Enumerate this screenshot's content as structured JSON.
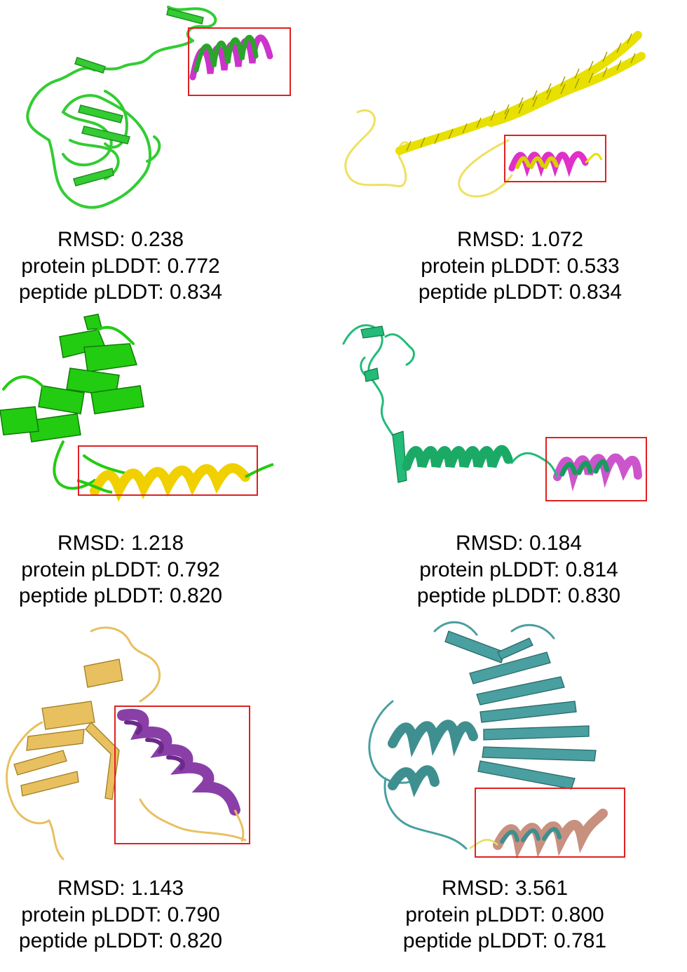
{
  "figure": {
    "panels": [
      {
        "rmsd_label": "RMSD: 0.238",
        "protein_label": "protein pLDDT: 0.772",
        "peptide_label": "peptide pLDDT: 0.834",
        "protein_color": "#33cc33",
        "peptide_color": "#cc33cc",
        "icon": "protein-structure-icon"
      },
      {
        "rmsd_label": "RMSD: 1.072",
        "protein_label": "protein pLDDT: 0.533",
        "peptide_label": "peptide pLDDT: 0.834",
        "protein_color": "#e8e000",
        "peptide_color": "#e030c8",
        "icon": "protein-structure-icon"
      },
      {
        "rmsd_label": "RMSD: 1.218",
        "protein_label": "protein pLDDT: 0.792",
        "peptide_label": "peptide pLDDT: 0.820",
        "protein_color": "#22cc11",
        "peptide_color": "#f0d000",
        "icon": "protein-structure-icon"
      },
      {
        "rmsd_label": "RMSD: 0.184",
        "protein_label": "protein pLDDT: 0.814",
        "peptide_label": "peptide pLDDT: 0.830",
        "protein_color": "#22bb77",
        "peptide_color": "#cc55cc",
        "icon": "protein-structure-icon"
      },
      {
        "rmsd_label": "RMSD: 1.143",
        "protein_label": "protein pLDDT: 0.790",
        "peptide_label": "peptide pLDDT: 0.820",
        "protein_color": "#e8c060",
        "peptide_color": "#8a3fa8",
        "icon": "protein-structure-icon"
      },
      {
        "rmsd_label": "RMSD: 3.561",
        "protein_label": "protein pLDDT: 0.800",
        "peptide_label": "peptide pLDDT: 0.781",
        "protein_color": "#4a9fa0",
        "peptide_color": "#c8907f",
        "icon": "protein-structure-icon"
      }
    ],
    "highlight_box_color": "#e02020"
  }
}
